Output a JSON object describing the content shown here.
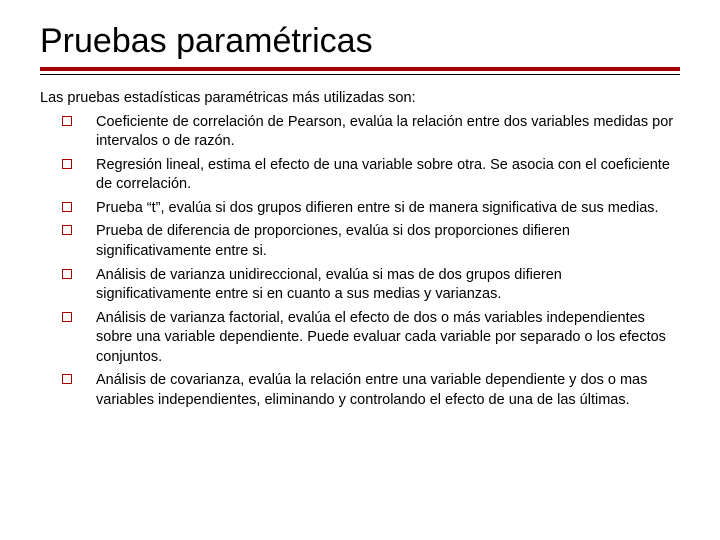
{
  "title": "Pruebas paramétricas",
  "intro": "Las pruebas estadísticas paramétricas más utilizadas son:",
  "items": [
    "Coeficiente de correlación de Pearson, evalúa la relación entre dos variables medidas por intervalos o de razón.",
    "Regresión lineal, estima el efecto de una variable sobre otra. Se asocia con el coeficiente de correlación.",
    "Prueba “t”, evalúa si dos grupos difieren entre si de manera significativa de sus medias.",
    "Prueba de diferencia de proporciones, evalúa si dos proporciones difieren significativamente entre si.",
    "Análisis de varianza unidireccional, evalúa si mas de dos grupos difieren significativamente entre si en cuanto a sus medias y varianzas.",
    "Análisis de varianza factorial, evalúa el efecto de dos o más variables independientes sobre una variable dependiente. Puede evaluar cada variable por separado o los efectos conjuntos.",
    "Análisis de covarianza, evalúa la relación entre una variable dependiente y dos o mas variables independientes, eliminando y controlando el efecto de una de las últimas."
  ],
  "colors": {
    "accent": "#a80000",
    "text": "#000000",
    "background": "#ffffff"
  },
  "typography": {
    "title_fontsize": 34,
    "body_fontsize": 14.5,
    "font_family": "Verdana"
  }
}
